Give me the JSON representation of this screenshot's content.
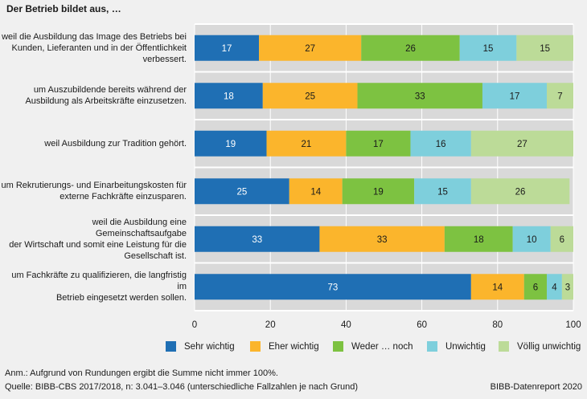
{
  "chart_data": {
    "type": "bar",
    "orientation": "horizontal-stacked",
    "title": "Der Betrieb bildet aus, …",
    "categories": [
      "weil die Ausbildung das Image des Betriebs bei Kunden, Lieferanten und in der Öffentlichkeit verbessert.",
      "um Auszubildende bereits während der Ausbildung als Arbeitskräfte einzusetzen.",
      "weil Ausbildung zur Tradition gehört.",
      "um Rekrutierungs- und Einarbeitungskosten für externe Fachkräfte einzusparen.",
      "weil die Ausbildung eine Gemeinschaftsaufgabe der Wirtschaft und somit eine Leistung für die Gesellschaft ist.",
      "um Fachkräfte zu qualifizieren, die langfristig im Betrieb eingesetzt werden sollen."
    ],
    "category_lines": [
      [
        "weil die Ausbildung das Image des Betriebs bei",
        "Kunden, Lieferanten und in der Öffentlichkeit",
        "verbessert."
      ],
      [
        "um Auszubildende bereits während der",
        "Ausbildung als Arbeitskräfte einzusetzen."
      ],
      [
        "weil Ausbildung zur Tradition gehört."
      ],
      [
        "um Rekrutierungs- und Einarbeitungskosten für",
        "externe Fachkräfte einzusparen."
      ],
      [
        "weil die Ausbildung eine Gemeinschaftsaufgabe",
        "der Wirtschaft und somit eine Leistung für die",
        "Gesellschaft ist."
      ],
      [
        "um Fachkräfte zu qualifizieren, die langfristig im",
        "Betrieb eingesetzt werden sollen."
      ]
    ],
    "series": [
      {
        "name": "Sehr wichtig",
        "color": "#1f6fb4",
        "label_color": "#ffffff",
        "values": [
          17,
          18,
          19,
          25,
          33,
          73
        ]
      },
      {
        "name": "Eher wichtig",
        "color": "#fbb52c",
        "label_color": "#1a1a1a",
        "values": [
          27,
          25,
          21,
          14,
          33,
          14
        ]
      },
      {
        "name": "Weder … noch",
        "color": "#7dc241",
        "label_color": "#1a1a1a",
        "values": [
          26,
          33,
          17,
          19,
          18,
          6
        ]
      },
      {
        "name": "Unwichtig",
        "color": "#7ecfdc",
        "label_color": "#1a1a1a",
        "values": [
          15,
          17,
          16,
          15,
          10,
          4
        ]
      },
      {
        "name": "Völlig unwichtig",
        "color": "#bcdb98",
        "label_color": "#1a1a1a",
        "values": [
          15,
          7,
          27,
          26,
          6,
          3
        ]
      }
    ],
    "xlim": [
      0,
      100
    ],
    "xticks": [
      0,
      20,
      40,
      60,
      80,
      100
    ],
    "grid": true,
    "legend_position": "bottom"
  },
  "notes": {
    "annotation": "Anm.: Aufgrund von Rundungen ergibt die Summe nicht immer 100%.",
    "source": "Quelle:  BIBB-CBS 2017/2018, n: 3.041–3.046 (unterschiedliche Fallzahlen je nach Grund)",
    "credit": "BIBB-Datenreport 2020"
  },
  "colors": {
    "background": "#f0f0f0",
    "plot_background": "#d9d9d9",
    "gridline": "#ffffff"
  }
}
